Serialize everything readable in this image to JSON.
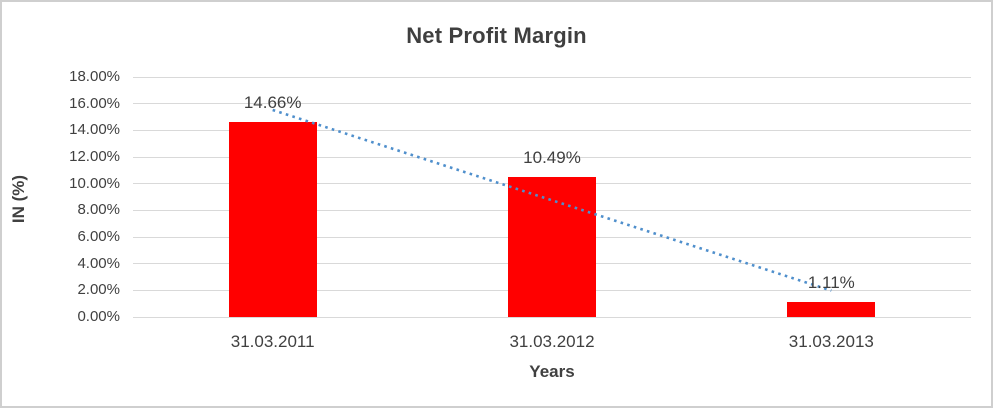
{
  "chart": {
    "title": "Net Profit Margin",
    "y_axis_title": "IN (%)",
    "x_axis_title": "Years"
  },
  "chart_data": {
    "type": "bar",
    "title": "Net Profit Margin",
    "xlabel": "Years",
    "ylabel": "IN (%)",
    "categories": [
      "31.03.2011",
      "31.03.2012",
      "31.03.2013"
    ],
    "values": [
      14.66,
      10.49,
      1.11
    ],
    "data_labels": [
      "14.66%",
      "10.49%",
      "1.11%"
    ],
    "y_ticks": [
      "0.00%",
      "2.00%",
      "4.00%",
      "6.00%",
      "8.00%",
      "10.00%",
      "12.00%",
      "14.00%",
      "16.00%",
      "18.00%"
    ],
    "ylim": [
      0,
      18
    ],
    "y_tick_step": 2,
    "grid": true,
    "legend": "none",
    "bar_color": "#ff0000",
    "gridline_color": "#d9d9d9",
    "text_color": "#404040",
    "trendline": {
      "type": "linear",
      "style": "dotted",
      "color": "#4f8fcc"
    }
  }
}
